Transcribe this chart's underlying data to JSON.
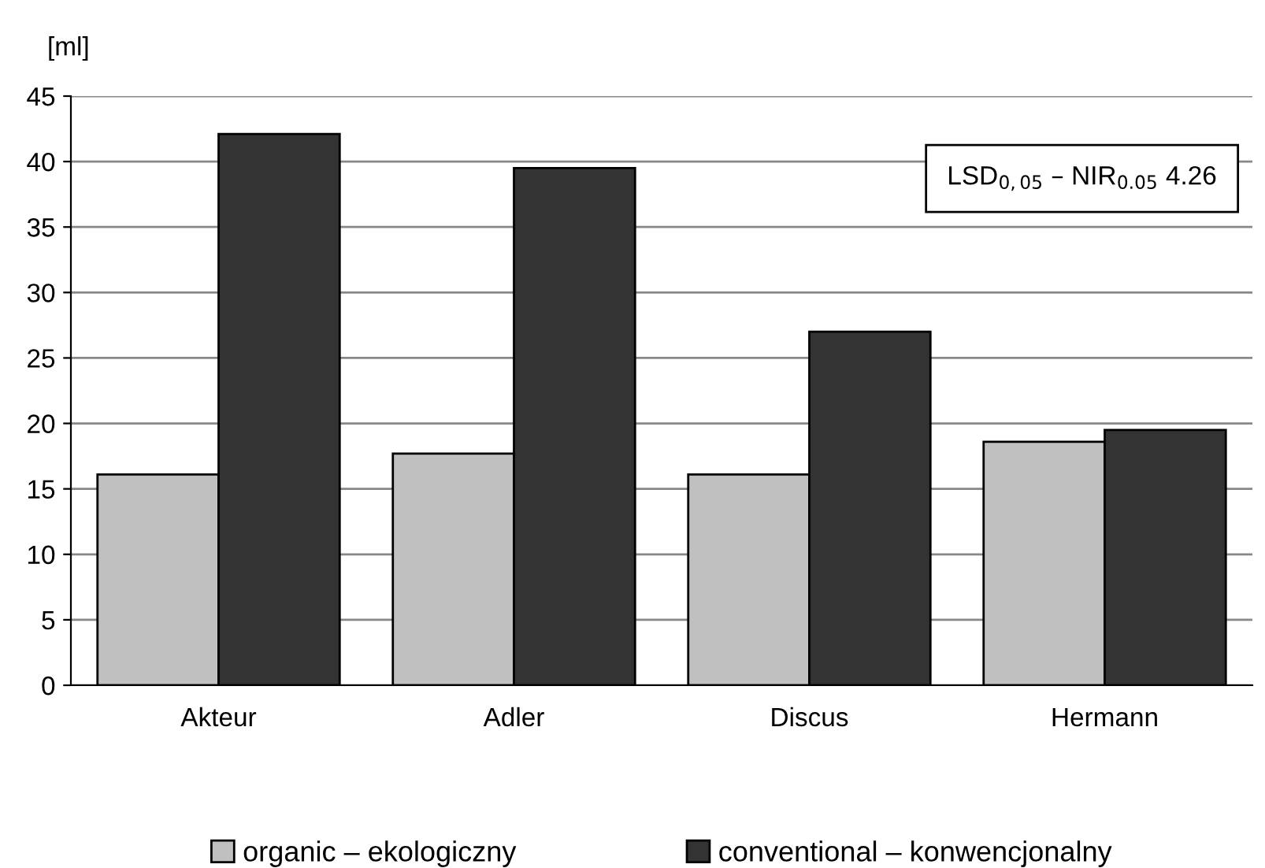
{
  "chart_data": {
    "type": "bar",
    "ylabel": "[ml]",
    "categories": [
      "Akteur",
      "Adler",
      "Discus",
      "Hermann"
    ],
    "series": [
      {
        "name": "organic – ekologiczny",
        "color": "#c0c0c0",
        "values": [
          16.1,
          17.7,
          16.1,
          18.6
        ]
      },
      {
        "name": "conventional – konwencjonalny",
        "color": "#333333",
        "values": [
          42.1,
          39.5,
          27.0,
          19.5
        ]
      }
    ],
    "ylim": [
      0,
      45
    ],
    "yticks": [
      0,
      5,
      10,
      15,
      20,
      25,
      30,
      35,
      40,
      45
    ],
    "grid": "y",
    "legend": "bottom",
    "annotations": [
      "LSD$_{0,05}$ – NIR$_{0.05}$ 4.26"
    ]
  }
}
